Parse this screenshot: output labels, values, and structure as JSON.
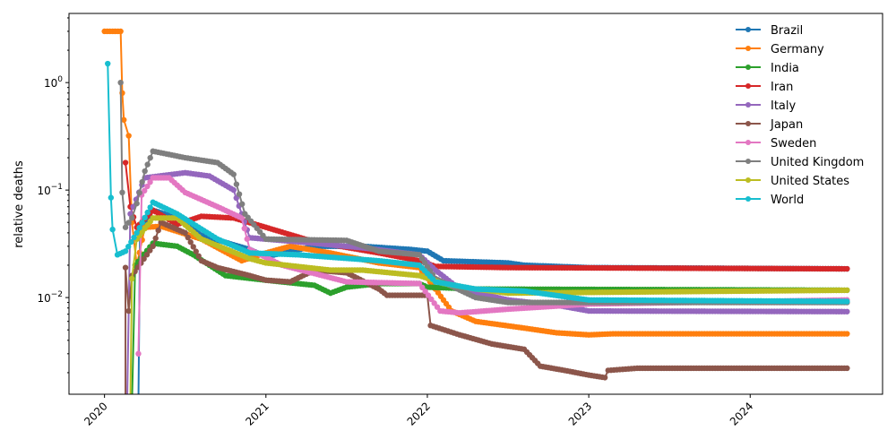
{
  "chart_data": {
    "type": "line",
    "title": "",
    "xlabel": "",
    "ylabel": "relative deaths",
    "yscale": "log",
    "xlim": [
      2019.78,
      2024.82
    ],
    "ylim": [
      0.00126,
      4.4
    ],
    "x_ticks": [
      2020,
      2021,
      2022,
      2023,
      2024
    ],
    "x_tick_labels": [
      "2020",
      "2021",
      "2022",
      "2023",
      "2024"
    ],
    "y_ticks": [
      1,
      0.1,
      0.01
    ],
    "y_tick_labels": [
      {
        "base": "10",
        "exp": "0"
      },
      {
        "base": "10",
        "exp": "−1"
      },
      {
        "base": "10",
        "exp": "−2"
      }
    ],
    "legend_position": "top-right",
    "series": [
      {
        "name": "Brazil",
        "color": "#1f77b4",
        "points": [
          [
            2020.21,
            0.001
          ],
          [
            2020.22,
            0.04
          ],
          [
            2020.3,
            0.065
          ],
          [
            2020.45,
            0.055
          ],
          [
            2020.6,
            0.038
          ],
          [
            2020.9,
            0.028
          ],
          [
            2021.0,
            0.024
          ],
          [
            2021.3,
            0.03
          ],
          [
            2021.6,
            0.03
          ],
          [
            2021.9,
            0.028
          ],
          [
            2022.0,
            0.027
          ],
          [
            2022.1,
            0.022
          ],
          [
            2022.5,
            0.021
          ],
          [
            2022.6,
            0.02
          ],
          [
            2023.0,
            0.019
          ],
          [
            2024.6,
            0.0185
          ]
        ]
      },
      {
        "name": "Germany",
        "color": "#ff7f0e",
        "points": [
          [
            2020.0,
            3.0
          ],
          [
            2020.1,
            3.0
          ],
          [
            2020.11,
            0.8
          ],
          [
            2020.12,
            0.45
          ],
          [
            2020.15,
            0.32
          ],
          [
            2020.17,
            0.05
          ],
          [
            2020.2,
            0.02
          ],
          [
            2020.25,
            0.045
          ],
          [
            2020.35,
            0.046
          ],
          [
            2020.6,
            0.035
          ],
          [
            2020.85,
            0.022
          ],
          [
            2021.0,
            0.026
          ],
          [
            2021.15,
            0.03
          ],
          [
            2021.4,
            0.026
          ],
          [
            2021.7,
            0.021
          ],
          [
            2021.95,
            0.019
          ],
          [
            2022.05,
            0.012
          ],
          [
            2022.15,
            0.0075
          ],
          [
            2022.3,
            0.006
          ],
          [
            2022.6,
            0.0052
          ],
          [
            2022.8,
            0.0047
          ],
          [
            2023.0,
            0.0045
          ],
          [
            2023.15,
            0.0046
          ],
          [
            2024.6,
            0.0046
          ]
        ]
      },
      {
        "name": "India",
        "color": "#2ca02c",
        "points": [
          [
            2020.17,
            0.001
          ],
          [
            2020.19,
            0.02
          ],
          [
            2020.3,
            0.032
          ],
          [
            2020.45,
            0.03
          ],
          [
            2020.55,
            0.025
          ],
          [
            2020.75,
            0.016
          ],
          [
            2021.0,
            0.0145
          ],
          [
            2021.3,
            0.013
          ],
          [
            2021.4,
            0.011
          ],
          [
            2021.5,
            0.0125
          ],
          [
            2021.7,
            0.0135
          ],
          [
            2021.95,
            0.0135
          ],
          [
            2022.0,
            0.0125
          ],
          [
            2022.3,
            0.012
          ],
          [
            2024.6,
            0.0117
          ]
        ]
      },
      {
        "name": "Iran",
        "color": "#d62728",
        "points": [
          [
            2020.13,
            0.18
          ],
          [
            2020.16,
            0.07
          ],
          [
            2020.2,
            0.045
          ],
          [
            2020.3,
            0.065
          ],
          [
            2020.45,
            0.048
          ],
          [
            2020.6,
            0.057
          ],
          [
            2020.8,
            0.055
          ],
          [
            2021.0,
            0.045
          ],
          [
            2021.3,
            0.033
          ],
          [
            2021.7,
            0.026
          ],
          [
            2021.95,
            0.022
          ],
          [
            2022.05,
            0.0195
          ],
          [
            2022.5,
            0.019
          ],
          [
            2024.6,
            0.0185
          ]
        ]
      },
      {
        "name": "Italy",
        "color": "#9467bd",
        "points": [
          [
            2020.14,
            0.001
          ],
          [
            2020.16,
            0.06
          ],
          [
            2020.25,
            0.13
          ],
          [
            2020.5,
            0.145
          ],
          [
            2020.65,
            0.135
          ],
          [
            2020.8,
            0.1
          ],
          [
            2020.9,
            0.036
          ],
          [
            2021.2,
            0.033
          ],
          [
            2021.6,
            0.029
          ],
          [
            2021.95,
            0.025
          ],
          [
            2022.05,
            0.018
          ],
          [
            2022.2,
            0.012
          ],
          [
            2022.5,
            0.0095
          ],
          [
            2022.8,
            0.0085
          ],
          [
            2023.0,
            0.0075
          ],
          [
            2024.6,
            0.0074
          ]
        ]
      },
      {
        "name": "Japan",
        "color": "#8c564b",
        "points": [
          [
            2020.13,
            0.001
          ],
          [
            2020.13,
            0.019
          ],
          [
            2020.15,
            0.0075
          ],
          [
            2020.17,
            0.016
          ],
          [
            2020.3,
            0.03
          ],
          [
            2020.35,
            0.05
          ],
          [
            2020.5,
            0.04
          ],
          [
            2020.6,
            0.022
          ],
          [
            2020.7,
            0.019
          ],
          [
            2020.9,
            0.016
          ],
          [
            2021.0,
            0.0145
          ],
          [
            2021.15,
            0.014
          ],
          [
            2021.3,
            0.018
          ],
          [
            2021.5,
            0.017
          ],
          [
            2021.7,
            0.012
          ],
          [
            2021.75,
            0.0105
          ],
          [
            2022.0,
            0.0105
          ],
          [
            2022.02,
            0.0055
          ],
          [
            2022.2,
            0.0045
          ],
          [
            2022.4,
            0.0037
          ],
          [
            2022.6,
            0.0033
          ],
          [
            2022.7,
            0.0023
          ],
          [
            2022.85,
            0.0021
          ],
          [
            2023.0,
            0.0019
          ],
          [
            2023.1,
            0.0018
          ],
          [
            2023.12,
            0.0021
          ],
          [
            2023.3,
            0.0022
          ],
          [
            2024.6,
            0.0022
          ]
        ]
      },
      {
        "name": "Sweden",
        "color": "#e377c2",
        "points": [
          [
            2020.21,
            0.003
          ],
          [
            2020.23,
            0.09
          ],
          [
            2020.3,
            0.13
          ],
          [
            2020.4,
            0.13
          ],
          [
            2020.5,
            0.095
          ],
          [
            2020.7,
            0.07
          ],
          [
            2020.85,
            0.055
          ],
          [
            2020.9,
            0.028
          ],
          [
            2021.1,
            0.02
          ],
          [
            2021.5,
            0.014
          ],
          [
            2021.95,
            0.0135
          ],
          [
            2022.08,
            0.0075
          ],
          [
            2022.2,
            0.0072
          ],
          [
            2022.5,
            0.0078
          ],
          [
            2022.9,
            0.0085
          ],
          [
            2023.0,
            0.0087
          ],
          [
            2024.6,
            0.0095
          ]
        ]
      },
      {
        "name": "United Kingdom",
        "color": "#7f7f7f",
        "points": [
          [
            2020.1,
            1.0
          ],
          [
            2020.11,
            0.095
          ],
          [
            2020.13,
            0.045
          ],
          [
            2020.17,
            0.055
          ],
          [
            2020.2,
            0.075
          ],
          [
            2020.25,
            0.15
          ],
          [
            2020.3,
            0.23
          ],
          [
            2020.5,
            0.2
          ],
          [
            2020.7,
            0.18
          ],
          [
            2020.8,
            0.14
          ],
          [
            2020.87,
            0.06
          ],
          [
            2021.0,
            0.035
          ],
          [
            2021.5,
            0.034
          ],
          [
            2021.7,
            0.027
          ],
          [
            2021.95,
            0.025
          ],
          [
            2022.05,
            0.015
          ],
          [
            2022.3,
            0.01
          ],
          [
            2022.5,
            0.009
          ],
          [
            2024.6,
            0.009
          ]
        ]
      },
      {
        "name": "United States",
        "color": "#bcbd22",
        "points": [
          [
            2020.16,
            0.001
          ],
          [
            2020.17,
            0.015
          ],
          [
            2020.2,
            0.035
          ],
          [
            2020.3,
            0.055
          ],
          [
            2020.45,
            0.055
          ],
          [
            2020.6,
            0.035
          ],
          [
            2020.9,
            0.023
          ],
          [
            2021.0,
            0.021
          ],
          [
            2021.4,
            0.018
          ],
          [
            2021.6,
            0.018
          ],
          [
            2021.95,
            0.016
          ],
          [
            2022.1,
            0.0135
          ],
          [
            2022.3,
            0.012
          ],
          [
            2022.5,
            0.011
          ],
          [
            2024.6,
            0.0117
          ]
        ]
      },
      {
        "name": "World",
        "color": "#17becf",
        "points": [
          [
            2020.02,
            1.5
          ],
          [
            2020.04,
            0.085
          ],
          [
            2020.05,
            0.043
          ],
          [
            2020.08,
            0.025
          ],
          [
            2020.13,
            0.027
          ],
          [
            2020.2,
            0.04
          ],
          [
            2020.3,
            0.077
          ],
          [
            2020.45,
            0.06
          ],
          [
            2020.7,
            0.035
          ],
          [
            2020.9,
            0.026
          ],
          [
            2021.2,
            0.025
          ],
          [
            2021.7,
            0.022
          ],
          [
            2021.95,
            0.02
          ],
          [
            2022.05,
            0.014
          ],
          [
            2022.3,
            0.012
          ],
          [
            2022.6,
            0.0115
          ],
          [
            2023.0,
            0.0095
          ],
          [
            2024.6,
            0.0092
          ]
        ]
      }
    ]
  }
}
